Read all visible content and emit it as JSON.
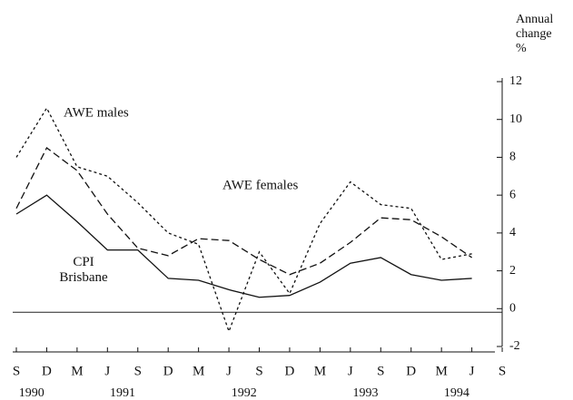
{
  "chart_data": {
    "type": "line",
    "y_axis_label": "Annual change %",
    "categories": [
      "S",
      "D",
      "M",
      "J",
      "S",
      "D",
      "M",
      "J",
      "S",
      "D",
      "M",
      "J",
      "S",
      "D",
      "M",
      "J",
      "S"
    ],
    "year_labels": [
      "1990",
      "1991",
      "1992",
      "1993",
      "1994"
    ],
    "series": [
      {
        "name": "AWE males",
        "color": "#111111",
        "dash": "3,3",
        "values": [
          8.0,
          10.6,
          7.5,
          7.0,
          5.6,
          4.0,
          3.4,
          -1.2,
          3.0,
          0.8,
          4.5,
          6.7,
          5.5,
          5.3,
          2.6,
          2.9,
          null
        ]
      },
      {
        "name": "AWE females",
        "color": "#111111",
        "dash": "8,4",
        "values": [
          5.3,
          8.5,
          7.3,
          5.0,
          3.2,
          2.8,
          3.7,
          3.6,
          2.6,
          1.8,
          2.4,
          3.5,
          4.8,
          4.7,
          3.8,
          2.7,
          null
        ]
      },
      {
        "name": "CPI Brisbane",
        "color": "#111111",
        "dash": "none",
        "values": [
          5.0,
          6.0,
          4.6,
          3.1,
          3.1,
          1.6,
          1.5,
          1.0,
          0.6,
          0.7,
          1.4,
          2.4,
          2.7,
          1.8,
          1.5,
          1.6,
          null
        ]
      }
    ],
    "ylim": [
      -2,
      12
    ],
    "yticks": [
      -2,
      0,
      2,
      4,
      6,
      8,
      10,
      12
    ],
    "zero_line": true
  }
}
